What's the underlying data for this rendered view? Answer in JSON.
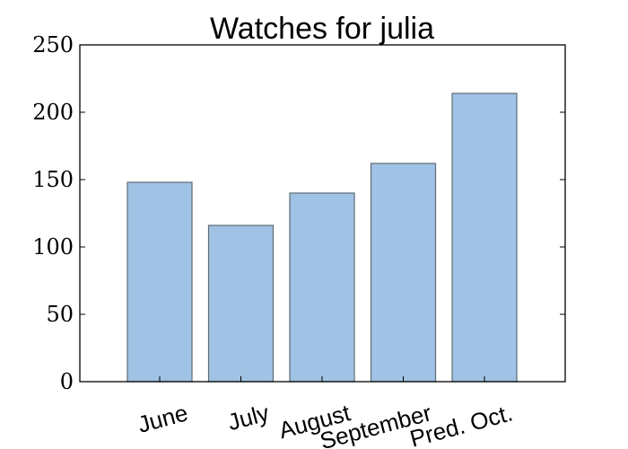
{
  "chart_data": {
    "type": "bar",
    "title": "Watches for julia",
    "xlabel": "",
    "ylabel": "",
    "categories": [
      "June",
      "July",
      "August",
      "September",
      "Pred. Oct."
    ],
    "values": [
      148,
      116,
      140,
      162,
      214
    ],
    "ylim": [
      0,
      250
    ],
    "yticks": [
      0,
      50,
      100,
      150,
      200,
      250
    ],
    "grid": false,
    "legend": "none",
    "bar_color": "#a0c2e4",
    "bar_edge_color": "#5f6b76"
  }
}
